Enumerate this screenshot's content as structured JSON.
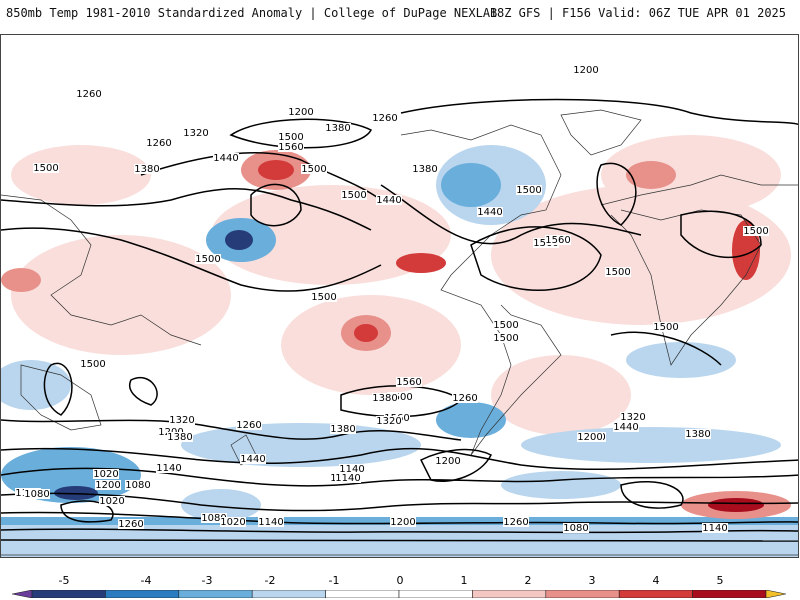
{
  "header": {
    "title_left": "850mb Temp 1981-2010 Standardized Anomaly | College of DuPage NEXLAB",
    "title_right": "18Z GFS | F156 Valid: 06Z TUE APR 01 2025"
  },
  "map": {
    "contour_labels": [
      "1320",
      "1260",
      "1200",
      "1380",
      "1260",
      "1320",
      "1260",
      "1440",
      "1500",
      "1560",
      "1500",
      "1380",
      "1500",
      "1380",
      "1440",
      "1560",
      "1500",
      "1440",
      "1500",
      "1500",
      "1500",
      "1560",
      "1500",
      "1500",
      "1500",
      "1500",
      "1500",
      "1560",
      "1500",
      "1500",
      "1380",
      "1260",
      "1320",
      "1200",
      "1380",
      "1260",
      "1440",
      "1560",
      "1380",
      "1320",
      "1260",
      "1320",
      "1200",
      "1440",
      "1380",
      "1140",
      "1020",
      "1080",
      "1200",
      "1140",
      "1080",
      "1020",
      "1140",
      "1080",
      "1200",
      "1140",
      "1080",
      "1020",
      "1260",
      "1140",
      "1200",
      "1260",
      "1080",
      "1140",
      "1200"
    ],
    "colors": {
      "neg5": "#6a3d9a",
      "neg4": "#253c78",
      "neg3": "#2b7bc0",
      "neg2": "#6aaedb",
      "neg1": "#b9d6ee",
      "pos1": "#f4c7c3",
      "pos2": "#e8908a",
      "pos3": "#d33a3a",
      "pos4": "#a80d1e",
      "pos5": "#f2c029"
    }
  },
  "colorbar": {
    "ticks": [
      "-5",
      "-4",
      "-3",
      "-2",
      "-1",
      "0",
      "1",
      "2",
      "3",
      "4",
      "5"
    ],
    "colors": [
      "#6a3d9a",
      "#253c78",
      "#2b7bc0",
      "#6aaedb",
      "#b9d6ee",
      "#ffffff",
      "#ffffff",
      "#f4c7c3",
      "#e8908a",
      "#d33a3a",
      "#a80d1e",
      "#f2c029"
    ]
  }
}
